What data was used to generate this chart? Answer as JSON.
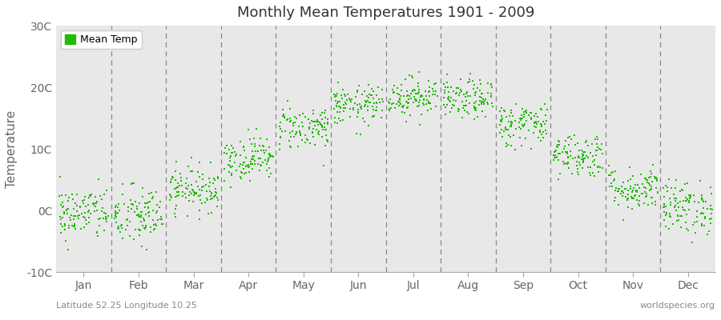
{
  "title": "Monthly Mean Temperatures 1901 - 2009",
  "ylabel": "Temperature",
  "xlabel_bottom_left": "Latitude 52.25 Longitude 10.25",
  "xlabel_bottom_right": "worldspecies.org",
  "ylim": [
    -10,
    30
  ],
  "yticks": [
    -10,
    0,
    10,
    20,
    30
  ],
  "ytick_labels": [
    "-10C",
    "0C",
    "10C",
    "20C",
    "30C"
  ],
  "months": [
    "Jan",
    "Feb",
    "Mar",
    "Apr",
    "May",
    "Jun",
    "Jul",
    "Aug",
    "Sep",
    "Oct",
    "Nov",
    "Dec"
  ],
  "dot_color": "#22bb00",
  "background_color": "#e8e8e8",
  "plot_bg_color": "#e8e8e8",
  "legend_label": "Mean Temp",
  "num_years": 109,
  "mean_temps": [
    -0.5,
    -1.0,
    3.5,
    8.5,
    13.5,
    17.0,
    18.5,
    18.0,
    14.0,
    9.0,
    3.5,
    0.5
  ],
  "std_temps": [
    2.2,
    2.5,
    1.8,
    1.8,
    1.8,
    1.6,
    1.6,
    1.6,
    1.8,
    1.8,
    1.8,
    2.2
  ],
  "seed": 42
}
